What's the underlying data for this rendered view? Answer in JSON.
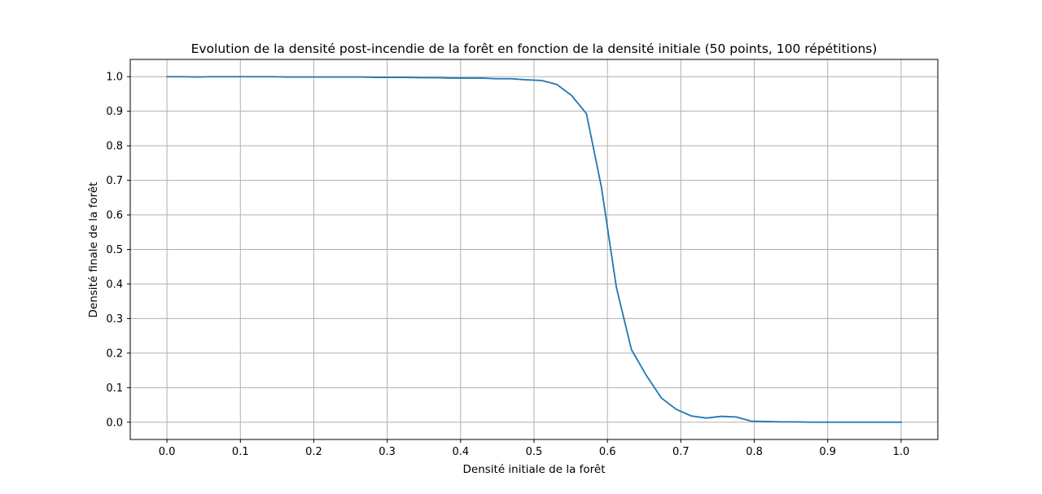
{
  "chart_data": {
    "type": "line",
    "title": "Evolution de la densité post-incendie de la forêt en fonction de la densité initiale (50 points, 100 répétitions)",
    "xlabel": "Densité initiale de la forêt",
    "ylabel": "Densité finale de la forêt",
    "xlim": [
      -0.05,
      1.05
    ],
    "ylim": [
      -0.05,
      1.05
    ],
    "xticks": [
      0.0,
      0.1,
      0.2,
      0.3,
      0.4,
      0.5,
      0.6,
      0.7,
      0.8,
      0.9,
      1.0
    ],
    "xtick_labels": [
      "0.0",
      "0.1",
      "0.2",
      "0.3",
      "0.4",
      "0.5",
      "0.6",
      "0.7",
      "0.8",
      "0.9",
      "1.0"
    ],
    "yticks": [
      0.0,
      0.1,
      0.2,
      0.3,
      0.4,
      0.5,
      0.6,
      0.7,
      0.8,
      0.9,
      1.0
    ],
    "ytick_labels": [
      "0.0",
      "0.1",
      "0.2",
      "0.3",
      "0.4",
      "0.5",
      "0.6",
      "0.7",
      "0.8",
      "0.9",
      "1.0"
    ],
    "grid": true,
    "series": [
      {
        "color": "#1f77b4",
        "x": [
          0.0,
          0.0204,
          0.0408,
          0.0612,
          0.0816,
          0.102,
          0.1224,
          0.1429,
          0.1633,
          0.1837,
          0.2041,
          0.2245,
          0.2449,
          0.2653,
          0.2857,
          0.3061,
          0.3265,
          0.3469,
          0.3673,
          0.3878,
          0.4082,
          0.4286,
          0.449,
          0.4694,
          0.4898,
          0.5102,
          0.5306,
          0.551,
          0.5714,
          0.5918,
          0.6122,
          0.6327,
          0.6531,
          0.6735,
          0.6939,
          0.7143,
          0.7347,
          0.7551,
          0.7755,
          0.7959,
          0.8163,
          0.8367,
          0.8571,
          0.8776,
          0.898,
          0.9184,
          0.9388,
          0.9592,
          0.9796,
          1.0
        ],
        "values": [
          1.0,
          1.0,
          0.999,
          1.0,
          1.0,
          1.0,
          1.0,
          1.0,
          0.999,
          0.999,
          0.999,
          0.999,
          0.999,
          0.999,
          0.998,
          0.998,
          0.998,
          0.997,
          0.997,
          0.996,
          0.996,
          0.996,
          0.994,
          0.994,
          0.991,
          0.989,
          0.978,
          0.946,
          0.893,
          0.68,
          0.39,
          0.21,
          0.135,
          0.07,
          0.037,
          0.018,
          0.012,
          0.017,
          0.015,
          0.003,
          0.002,
          0.001,
          0.001,
          0.0,
          0.0,
          0.0,
          0.0,
          0.0,
          0.0,
          0.0
        ]
      }
    ]
  }
}
